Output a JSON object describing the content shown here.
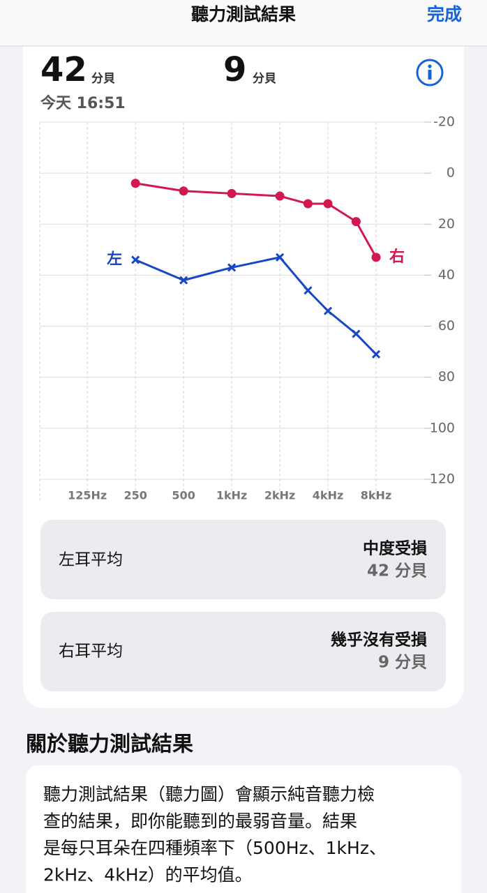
{
  "header": {
    "title": "聽力測試結果",
    "done": "完成"
  },
  "summary": {
    "left": {
      "value": 42,
      "unit": "分貝"
    },
    "right": {
      "value": 9,
      "unit": "分貝"
    },
    "time": "今天 16:51"
  },
  "chart_data": {
    "type": "line",
    "x": [
      250,
      500,
      1000,
      2000,
      3000,
      4000,
      6000,
      8000
    ],
    "xscale": "log",
    "xlim": [
      63,
      16000
    ],
    "xticks": [
      {
        "value": 125,
        "label": "125Hz"
      },
      250,
      500,
      {
        "value": 1000,
        "label": "1kHz"
      },
      {
        "value": 2000,
        "label": "2kHz"
      },
      {
        "value": 4000,
        "label": "4kHz"
      },
      {
        "value": 8000,
        "label": "8kHz"
      }
    ],
    "ylim": [
      -20,
      120
    ],
    "yinverted": true,
    "yticks": [
      -20,
      0,
      20,
      40,
      60,
      80,
      100,
      120
    ],
    "grid": true,
    "series": [
      {
        "name": "右",
        "color": "#d1184f",
        "marker": "circle",
        "values": [
          4,
          7,
          8,
          9,
          12,
          12,
          19,
          33
        ]
      },
      {
        "name": "左",
        "color": "#1747c6",
        "marker": "x",
        "values": [
          34,
          42,
          37,
          33,
          46,
          54,
          63,
          71
        ]
      }
    ]
  },
  "cards": [
    {
      "label": "左耳平均",
      "status": "中度受損",
      "value": "42 分貝"
    },
    {
      "label": "右耳平均",
      "status": "幾乎沒有受損",
      "value": "9 分貝"
    }
  ],
  "about": {
    "title": "關於聽力測試結果",
    "lines": [
      "聽力測試結果（聽力圖）會顯示純音聽力檢",
      "查的結果，即你能聽到的最弱音量。結果",
      "是每只耳朵在四種頻率下（500Hz、1kHz、",
      "2kHz、4kHz）的平均值。"
    ]
  }
}
